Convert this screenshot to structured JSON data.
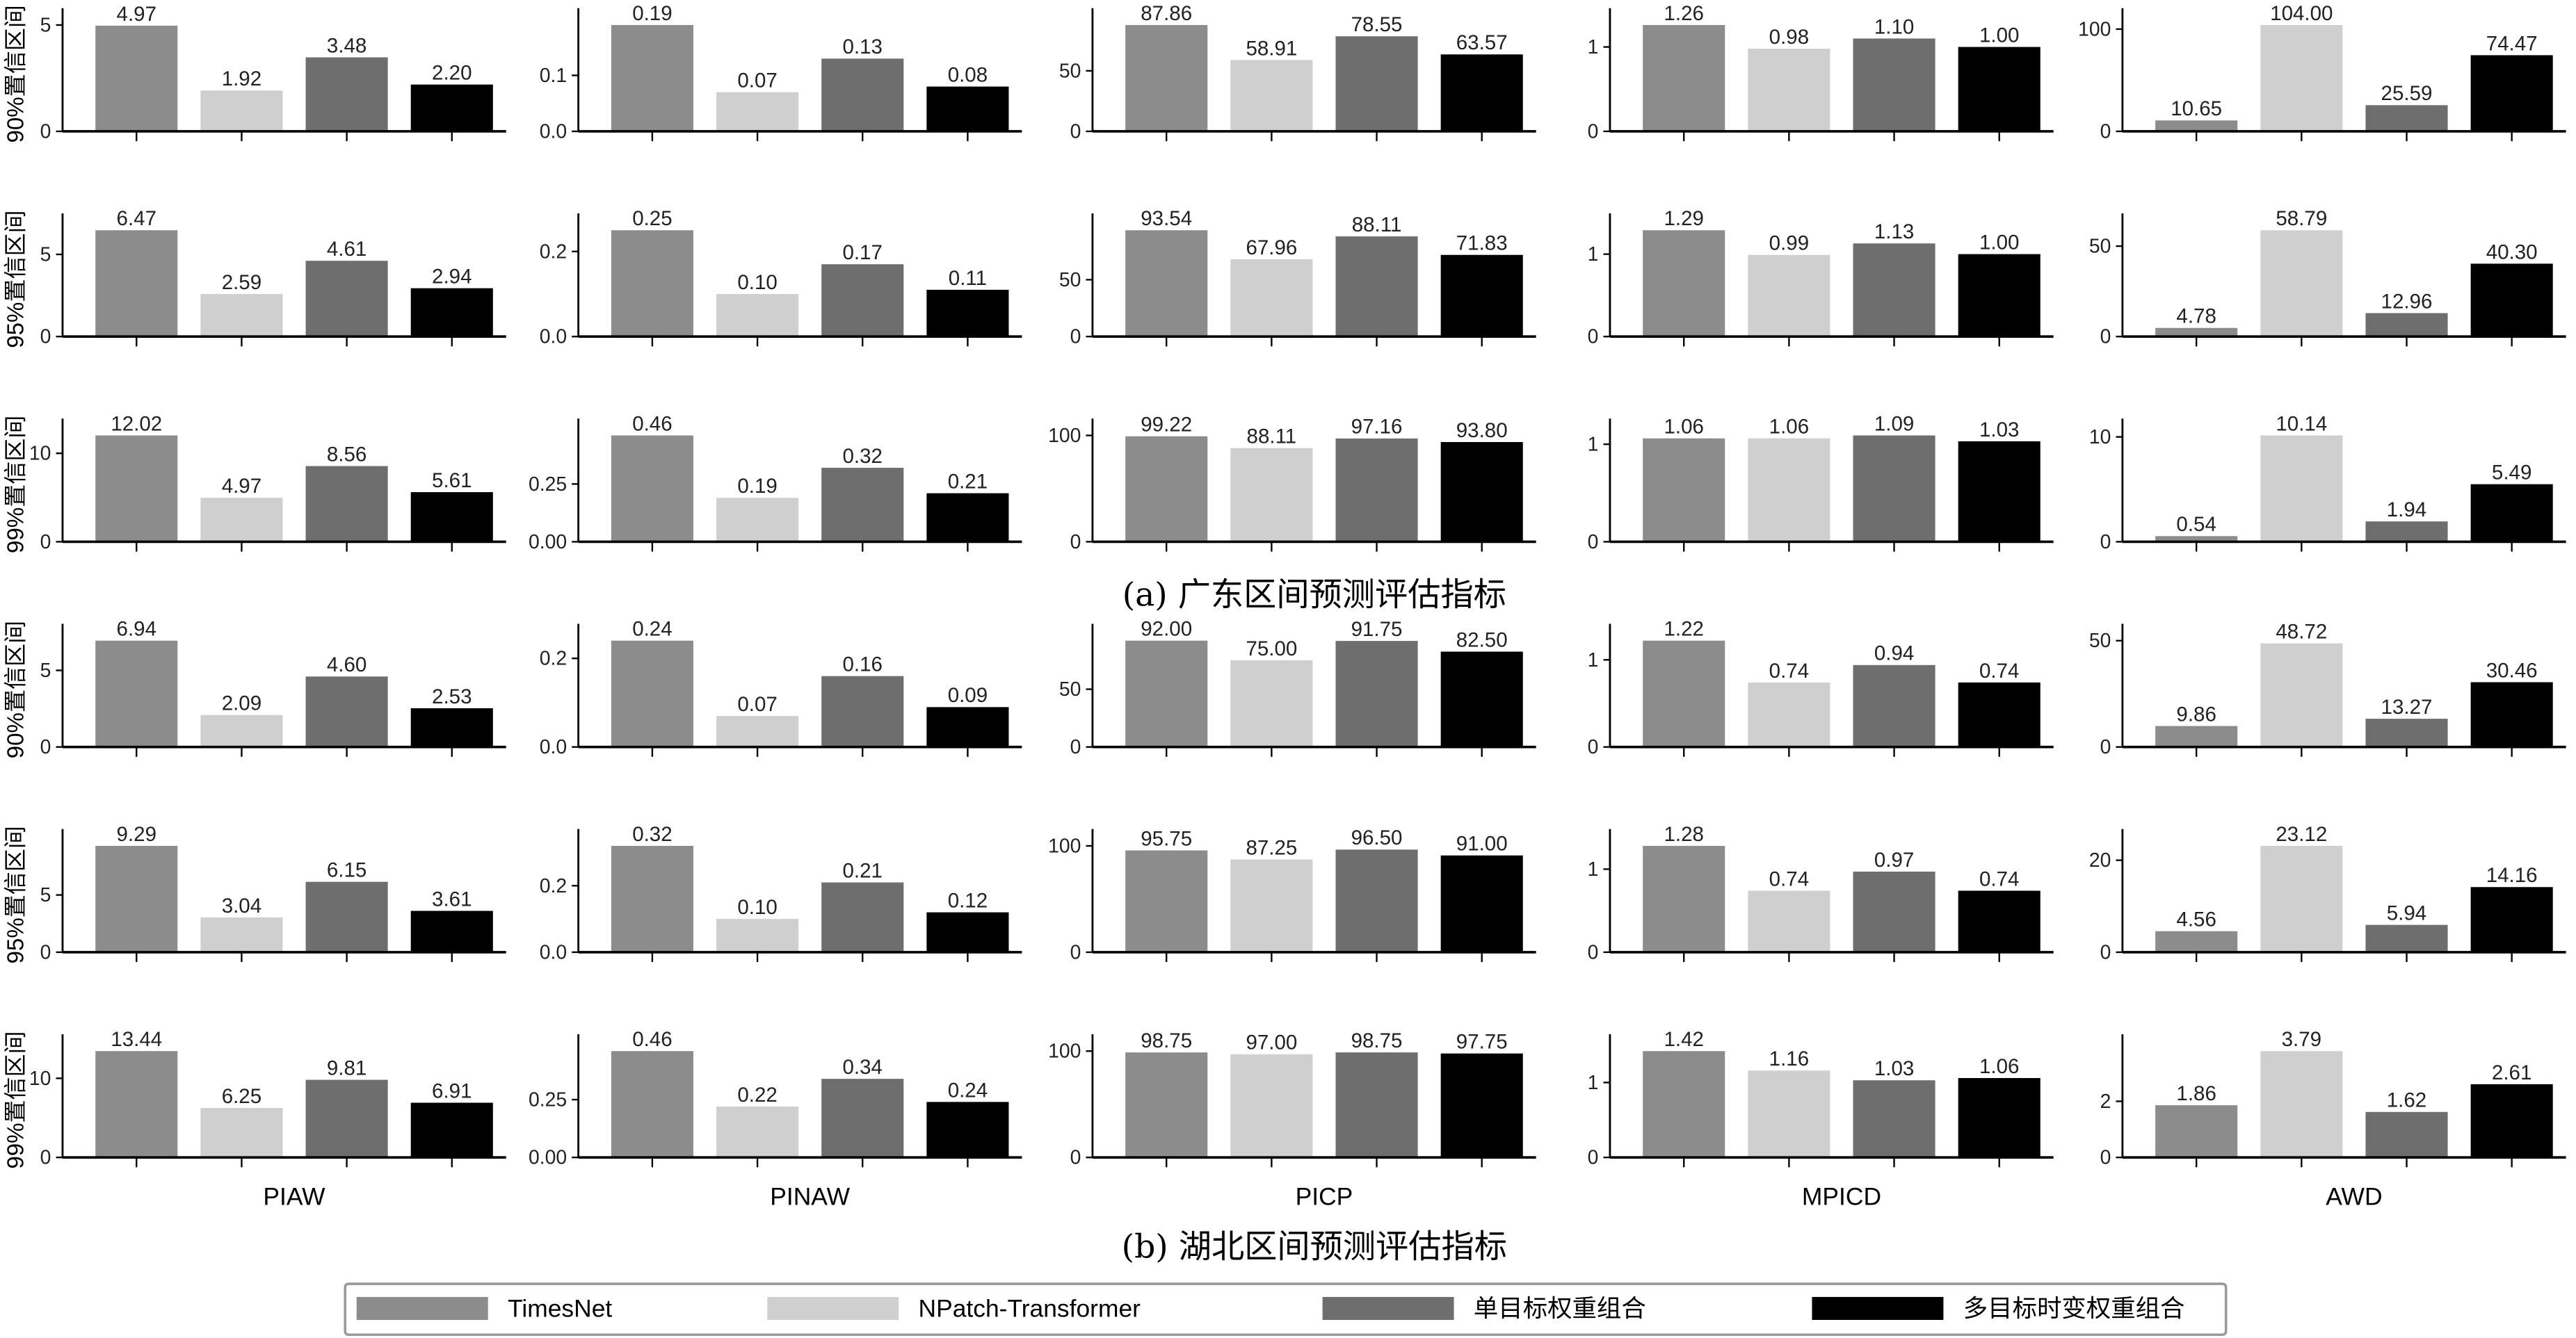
{
  "chart_data": {
    "type": "bar",
    "series_names": [
      "TimesNet",
      "NPatch-Transformer",
      "单目标权重组合",
      "多目标时变权重组合"
    ],
    "colors": [
      "#8c8c8c",
      "#cfcfcf",
      "#6e6e6e",
      "#000000"
    ],
    "metrics": [
      "PIAW",
      "PINAW",
      "PICP",
      "MPICD",
      "AWD"
    ],
    "captions": [
      "(a) 广东区间预测评估指标",
      "(b) 湖北区间预测评估指标"
    ],
    "rows": [
      {
        "region": "广东",
        "ylabel": "90%置信区间",
        "panels": [
          {
            "ticks": [
              "0",
              "5"
            ],
            "values": [
              4.97,
              1.92,
              3.48,
              2.2
            ],
            "labels": [
              "4.97",
              "1.92",
              "3.48",
              "2.20"
            ]
          },
          {
            "ticks": [
              "0.0",
              "0.1"
            ],
            "values": [
              0.19,
              0.07,
              0.13,
              0.08
            ],
            "labels": [
              "0.19",
              "0.07",
              "0.13",
              "0.08"
            ]
          },
          {
            "ticks": [
              "0",
              "50"
            ],
            "values": [
              87.86,
              58.91,
              78.55,
              63.57
            ],
            "labels": [
              "87.86",
              "58.91",
              "78.55",
              "63.57"
            ]
          },
          {
            "ticks": [
              "0",
              "1"
            ],
            "values": [
              1.26,
              0.98,
              1.1,
              1.0
            ],
            "labels": [
              "1.26",
              "0.98",
              "1.10",
              "1.00"
            ]
          },
          {
            "ticks": [
              "0",
              "100"
            ],
            "values": [
              10.65,
              104.0,
              25.59,
              74.47
            ],
            "labels": [
              "10.65",
              "104.00",
              "25.59",
              "74.47"
            ]
          }
        ]
      },
      {
        "region": "广东",
        "ylabel": "95%置信区间",
        "panels": [
          {
            "ticks": [
              "0",
              "5"
            ],
            "values": [
              6.47,
              2.59,
              4.61,
              2.94
            ],
            "labels": [
              "6.47",
              "2.59",
              "4.61",
              "2.94"
            ]
          },
          {
            "ticks": [
              "0.0",
              "0.2"
            ],
            "values": [
              0.25,
              0.1,
              0.17,
              0.11
            ],
            "labels": [
              "0.25",
              "0.10",
              "0.17",
              "0.11"
            ]
          },
          {
            "ticks": [
              "0",
              "50"
            ],
            "values": [
              93.54,
              67.96,
              88.11,
              71.83
            ],
            "labels": [
              "93.54",
              "67.96",
              "88.11",
              "71.83"
            ]
          },
          {
            "ticks": [
              "0",
              "1"
            ],
            "values": [
              1.29,
              0.99,
              1.13,
              1.0
            ],
            "labels": [
              "1.29",
              "0.99",
              "1.13",
              "1.00"
            ]
          },
          {
            "ticks": [
              "0",
              "50"
            ],
            "values": [
              4.78,
              58.79,
              12.96,
              40.3
            ],
            "labels": [
              "4.78",
              "58.79",
              "12.96",
              "40.30"
            ]
          }
        ]
      },
      {
        "region": "广东",
        "ylabel": "99%置信区间",
        "panels": [
          {
            "ticks": [
              "0",
              "10"
            ],
            "values": [
              12.02,
              4.97,
              8.56,
              5.61
            ],
            "labels": [
              "12.02",
              "4.97",
              "8.56",
              "5.61"
            ]
          },
          {
            "ticks": [
              "0.00",
              "0.25"
            ],
            "values": [
              0.46,
              0.19,
              0.32,
              0.21
            ],
            "labels": [
              "0.46",
              "0.19",
              "0.32",
              "0.21"
            ]
          },
          {
            "ticks": [
              "0",
              "100"
            ],
            "values": [
              99.22,
              88.11,
              97.16,
              93.8
            ],
            "labels": [
              "99.22",
              "88.11",
              "97.16",
              "93.80"
            ]
          },
          {
            "ticks": [
              "0",
              "1"
            ],
            "values": [
              1.06,
              1.06,
              1.09,
              1.03
            ],
            "labels": [
              "1.06",
              "1.06",
              "1.09",
              "1.03"
            ]
          },
          {
            "ticks": [
              "0",
              "10"
            ],
            "values": [
              0.54,
              10.14,
              1.94,
              5.49
            ],
            "labels": [
              "0.54",
              "10.14",
              "1.94",
              "5.49"
            ]
          }
        ]
      },
      {
        "region": "湖北",
        "ylabel": "90%置信区间",
        "panels": [
          {
            "ticks": [
              "0",
              "5"
            ],
            "values": [
              6.94,
              2.09,
              4.6,
              2.53
            ],
            "labels": [
              "6.94",
              "2.09",
              "4.60",
              "2.53"
            ]
          },
          {
            "ticks": [
              "0.0",
              "0.2"
            ],
            "values": [
              0.24,
              0.07,
              0.16,
              0.09
            ],
            "labels": [
              "0.24",
              "0.07",
              "0.16",
              "0.09"
            ]
          },
          {
            "ticks": [
              "0",
              "50"
            ],
            "values": [
              92.0,
              75.0,
              91.75,
              82.5
            ],
            "labels": [
              "92.00",
              "75.00",
              "91.75",
              "82.50"
            ]
          },
          {
            "ticks": [
              "0",
              "1"
            ],
            "values": [
              1.22,
              0.74,
              0.94,
              0.74
            ],
            "labels": [
              "1.22",
              "0.74",
              "0.94",
              "0.74"
            ]
          },
          {
            "ticks": [
              "0",
              "50"
            ],
            "values": [
              9.86,
              48.72,
              13.27,
              30.46
            ],
            "labels": [
              "9.86",
              "48.72",
              "13.27",
              "30.46"
            ]
          }
        ]
      },
      {
        "region": "湖北",
        "ylabel": "95%置信区间",
        "panels": [
          {
            "ticks": [
              "0",
              "5"
            ],
            "values": [
              9.29,
              3.04,
              6.15,
              3.61
            ],
            "labels": [
              "9.29",
              "3.04",
              "6.15",
              "3.61"
            ]
          },
          {
            "ticks": [
              "0.0",
              "0.2"
            ],
            "values": [
              0.32,
              0.1,
              0.21,
              0.12
            ],
            "labels": [
              "0.32",
              "0.10",
              "0.21",
              "0.12"
            ]
          },
          {
            "ticks": [
              "0",
              "100"
            ],
            "values": [
              95.75,
              87.25,
              96.5,
              91.0
            ],
            "labels": [
              "95.75",
              "87.25",
              "96.50",
              "91.00"
            ]
          },
          {
            "ticks": [
              "0",
              "1"
            ],
            "values": [
              1.28,
              0.74,
              0.97,
              0.74
            ],
            "labels": [
              "1.28",
              "0.74",
              "0.97",
              "0.74"
            ]
          },
          {
            "ticks": [
              "0",
              "20"
            ],
            "values": [
              4.56,
              23.12,
              5.94,
              14.16
            ],
            "labels": [
              "4.56",
              "23.12",
              "5.94",
              "14.16"
            ]
          }
        ]
      },
      {
        "region": "湖北",
        "ylabel": "99%置信区间",
        "panels": [
          {
            "ticks": [
              "0",
              "10"
            ],
            "values": [
              13.44,
              6.25,
              9.81,
              6.91
            ],
            "labels": [
              "13.44",
              "6.25",
              "9.81",
              "6.91"
            ]
          },
          {
            "ticks": [
              "0.00",
              "0.25"
            ],
            "values": [
              0.46,
              0.22,
              0.34,
              0.24
            ],
            "labels": [
              "0.46",
              "0.22",
              "0.34",
              "0.24"
            ]
          },
          {
            "ticks": [
              "0",
              "100"
            ],
            "values": [
              98.75,
              97.0,
              98.75,
              97.75
            ],
            "labels": [
              "98.75",
              "97.00",
              "98.75",
              "97.75"
            ]
          },
          {
            "ticks": [
              "0",
              "1"
            ],
            "values": [
              1.42,
              1.16,
              1.03,
              1.06
            ],
            "labels": [
              "1.42",
              "1.16",
              "1.03",
              "1.06"
            ]
          },
          {
            "ticks": [
              "0",
              "2"
            ],
            "values": [
              1.86,
              3.79,
              1.62,
              2.61
            ],
            "labels": [
              "1.86",
              "3.79",
              "1.62",
              "2.61"
            ]
          }
        ]
      }
    ]
  }
}
